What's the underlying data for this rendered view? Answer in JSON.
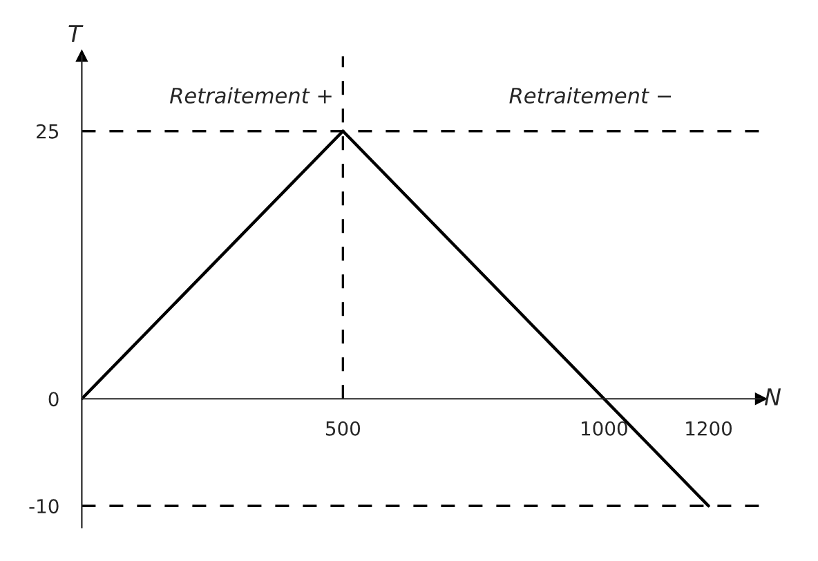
{
  "chart_data": {
    "type": "line",
    "xlabel": "N",
    "ylabel": "T",
    "x": [
      0,
      500,
      1200
    ],
    "series": [
      {
        "color": "#000000",
        "values": [
          0,
          25,
          -10
        ]
      }
    ],
    "xlim": [
      0,
      1300
    ],
    "ylim": [
      -12,
      32
    ],
    "xticks": [
      500,
      1000,
      1200
    ],
    "yticks": [
      -10,
      0,
      25
    ],
    "ref_lines": [
      {
        "axis": "y",
        "value": 25,
        "color": "#000000",
        "line_style": "dashed"
      },
      {
        "axis": "x",
        "value": 500,
        "color": "#000000",
        "line_style": "dashed"
      },
      {
        "axis": "y",
        "value": -10,
        "color": "#000000",
        "line_style": "dashed"
      }
    ],
    "annotations": [
      "Retraitement +",
      "Retraitement −"
    ],
    "grid": false,
    "legend": false,
    "marker": "none",
    "line_style": "solid"
  }
}
